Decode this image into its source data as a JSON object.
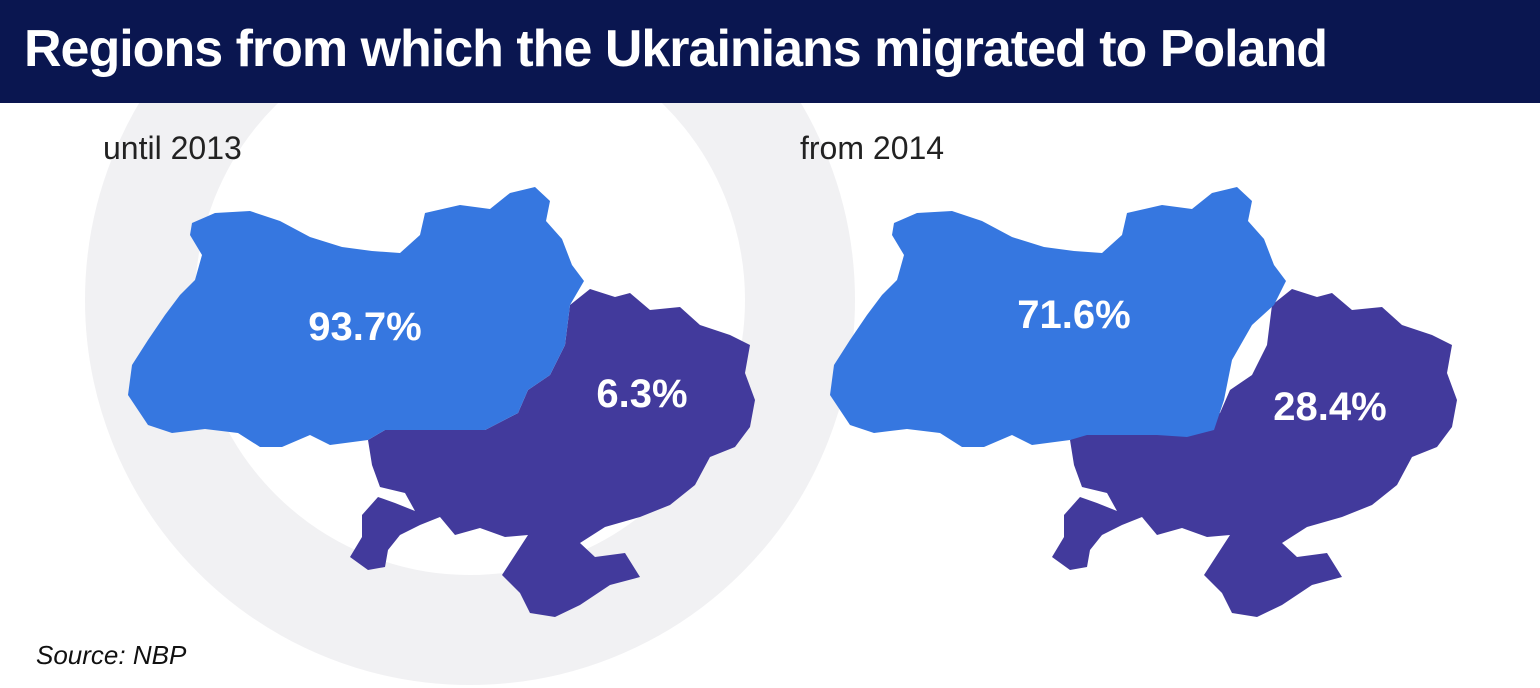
{
  "title": "Regions from which the Ukrainians migrated to Poland",
  "colors": {
    "header_bg": "#0a1650",
    "west_region": "#3677e0",
    "east_region": "#423a9c",
    "watermark": "#f1f1f3"
  },
  "maps": [
    {
      "period": "until 2013",
      "west_pct": "93.7%",
      "east_pct": "6.3%"
    },
    {
      "period": "from 2014",
      "west_pct": "71.6%",
      "east_pct": "28.4%"
    }
  ],
  "source": "Source: NBP"
}
